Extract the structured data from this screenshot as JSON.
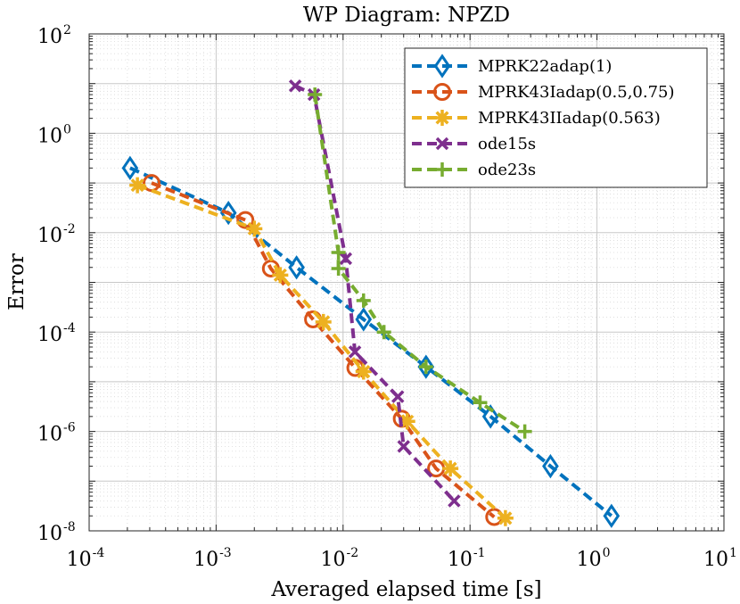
{
  "chart_data": {
    "type": "line",
    "title": "WP Diagram: NPZD",
    "xlabel": "Averaged elapsed time [s]",
    "ylabel": "Error",
    "xscale": "log",
    "yscale": "log",
    "xlim": [
      0.0001,
      10
    ],
    "ylim": [
      1e-08,
      100
    ],
    "grid": true,
    "legend_location": "top-right",
    "x_ticks": [
      {
        "base": "10",
        "exp": "-4",
        "value": 0.0001
      },
      {
        "base": "10",
        "exp": "-3",
        "value": 0.001
      },
      {
        "base": "10",
        "exp": "-2",
        "value": 0.01
      },
      {
        "base": "10",
        "exp": "-1",
        "value": 0.1
      },
      {
        "base": "10",
        "exp": "0",
        "value": 1
      },
      {
        "base": "10",
        "exp": "1",
        "value": 10
      }
    ],
    "y_ticks": [
      {
        "base": "10",
        "exp": "2",
        "value": 100
      },
      {
        "base": "10",
        "exp": "0",
        "value": 1
      },
      {
        "base": "10",
        "exp": "-2",
        "value": 0.01
      },
      {
        "base": "10",
        "exp": "-4",
        "value": 0.0001
      },
      {
        "base": "10",
        "exp": "-6",
        "value": 1e-06
      },
      {
        "base": "10",
        "exp": "-8",
        "value": 1e-08
      }
    ],
    "series": [
      {
        "name": "MPRK22adap(1)",
        "color": "#0072BD",
        "marker": "diamond",
        "x": [
          0.00021,
          0.00125,
          0.0043,
          0.0145,
          0.045,
          0.145,
          0.43,
          1.3
        ],
        "y": [
          0.2,
          0.025,
          0.002,
          0.00018,
          2e-05,
          2e-06,
          2e-07,
          2e-08
        ]
      },
      {
        "name": "MPRK43Iadap(0.5,0.75)",
        "color": "#D95319",
        "marker": "circle",
        "x": [
          0.00031,
          0.0017,
          0.0027,
          0.0058,
          0.0125,
          0.029,
          0.054,
          0.155
        ],
        "y": [
          0.1,
          0.018,
          0.0019,
          0.00018,
          1.9e-05,
          1.8e-06,
          1.8e-07,
          1.9e-08
        ]
      },
      {
        "name": "MPRK43IIadap(0.563)",
        "color": "#EDB120",
        "marker": "asterisk",
        "x": [
          0.00024,
          0.002,
          0.0032,
          0.007,
          0.0145,
          0.032,
          0.07,
          0.19
        ],
        "y": [
          0.09,
          0.012,
          0.0014,
          0.00016,
          1.6e-05,
          1.6e-06,
          1.8e-07,
          1.8e-08
        ]
      },
      {
        "name": "ode15s",
        "color": "#7E2F8E",
        "marker": "x",
        "x": [
          0.0042,
          0.0059,
          0.0105,
          0.0124,
          0.027,
          0.03,
          0.075
        ],
        "y": [
          9,
          6,
          0.003,
          4e-05,
          5e-06,
          5e-07,
          4e-08
        ]
      },
      {
        "name": "ode23s",
        "color": "#77AC30",
        "marker": "plus",
        "x": [
          0.006,
          0.0092,
          0.0092,
          0.0145,
          0.021,
          0.045,
          0.12,
          0.27
        ],
        "y": [
          6,
          0.004,
          0.0019,
          0.00043,
          0.0001,
          2e-05,
          3.8e-06,
          1e-06
        ]
      }
    ]
  }
}
